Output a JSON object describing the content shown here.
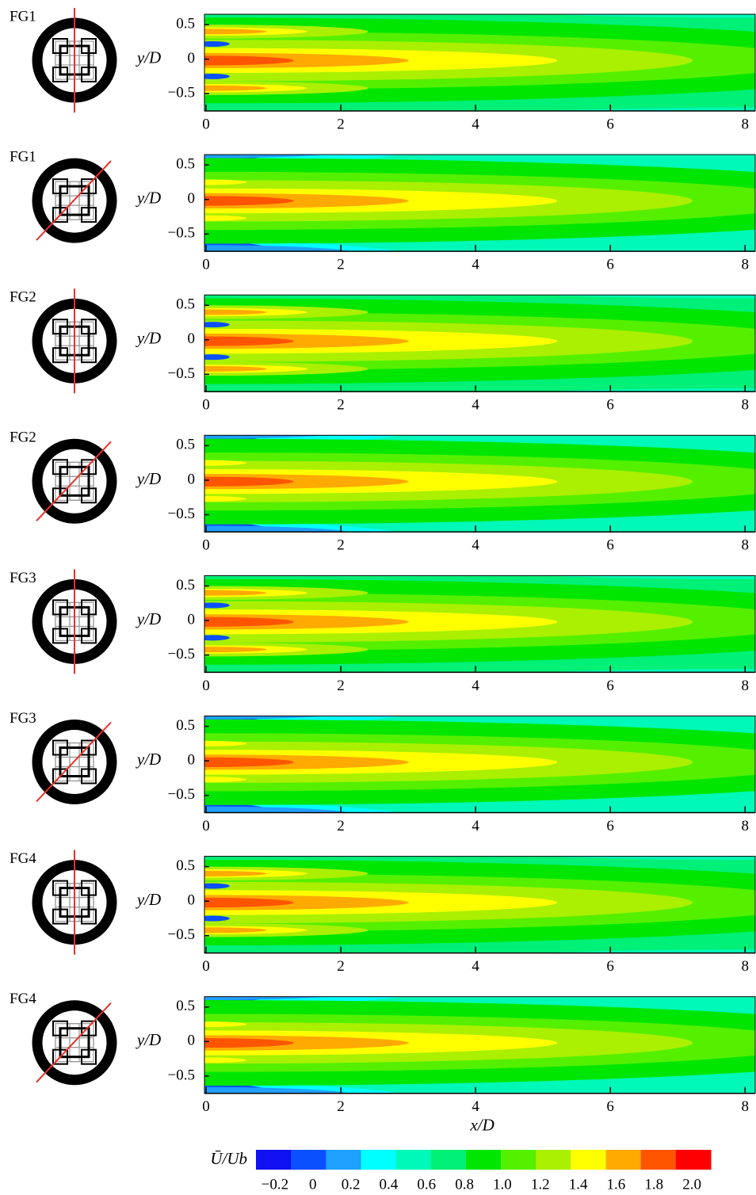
{
  "chart_data": [
    {
      "type": "contour",
      "label": "FG1",
      "ylabel": "y/D",
      "xlim": [
        0,
        8.15
      ],
      "ylim": [
        -0.75,
        0.65
      ],
      "xticks": [
        0,
        2,
        4,
        6,
        8
      ],
      "yticks": [
        {
          "value": 0.5,
          "label": "0.5"
        },
        0,
        {
          "value": -0.5,
          "label": "−0.5"
        }
      ]
    },
    {
      "type": "contour",
      "label": "FG1",
      "ylabel": "y/D",
      "xlim": [
        0,
        8.15
      ],
      "ylim": [
        -0.75,
        0.65
      ],
      "xticks": [
        0,
        2,
        4,
        6,
        8
      ],
      "yticks": [
        {
          "value": 0.5,
          "label": "0.5"
        },
        0,
        {
          "value": -0.5,
          "label": "−0.5"
        }
      ]
    },
    {
      "type": "contour",
      "label": "FG2",
      "ylabel": "y/D",
      "xlim": [
        0,
        8.15
      ],
      "ylim": [
        -0.75,
        0.65
      ],
      "xticks": [
        0,
        2,
        4,
        6,
        8
      ],
      "yticks": [
        {
          "value": 0.5,
          "label": "0.5"
        },
        0,
        {
          "value": -0.5,
          "label": "−0.5"
        }
      ]
    },
    {
      "type": "contour",
      "label": "FG2",
      "ylabel": "y/D",
      "xlim": [
        0,
        8.15
      ],
      "ylim": [
        -0.75,
        0.65
      ],
      "xticks": [
        0,
        2,
        4,
        6,
        8
      ],
      "yticks": [
        {
          "value": 0.5,
          "label": "0.5"
        },
        0,
        {
          "value": -0.5,
          "label": "−0.5"
        }
      ]
    },
    {
      "type": "contour",
      "label": "FG3",
      "ylabel": "y/D",
      "xlim": [
        0,
        8.15
      ],
      "ylim": [
        -0.75,
        0.65
      ],
      "xticks": [
        0,
        2,
        4,
        6,
        8
      ],
      "yticks": [
        {
          "value": 0.5,
          "label": "0.5"
        },
        0,
        {
          "value": -0.5,
          "label": "−0.5"
        }
      ]
    },
    {
      "type": "contour",
      "label": "FG3",
      "ylabel": "y/D",
      "xlim": [
        0,
        8.15
      ],
      "ylim": [
        -0.75,
        0.65
      ],
      "xticks": [
        0,
        2,
        4,
        6,
        8
      ],
      "yticks": [
        {
          "value": 0.5,
          "label": "0.5"
        },
        0,
        {
          "value": -0.5,
          "label": "−0.5"
        }
      ]
    },
    {
      "type": "contour",
      "label": "FG4",
      "ylabel": "y/D",
      "xlim": [
        0,
        8.15
      ],
      "ylim": [
        -0.75,
        0.65
      ],
      "xticks": [
        0,
        2,
        4,
        6,
        8
      ],
      "yticks": [
        {
          "value": 0.5,
          "label": "0.5"
        },
        0,
        {
          "value": -0.5,
          "label": "−0.5"
        }
      ]
    },
    {
      "type": "contour",
      "label": "FG4",
      "ylabel": "y/D",
      "xlabel": "x/D",
      "xlim": [
        0,
        8.15
      ],
      "ylim": [
        -0.75,
        0.65
      ],
      "xticks": [
        0,
        2,
        4,
        6,
        8
      ],
      "yticks": [
        {
          "value": 0.5,
          "label": "0.5"
        },
        0,
        {
          "value": -0.5,
          "label": "−0.5"
        }
      ]
    },
    {
      "type": "colorbar",
      "label": "Ū/Ub",
      "clim": [
        -0.3,
        2.1
      ],
      "ticks": [
        {
          "value": -0.2,
          "label": "−0.2"
        },
        0,
        0.2,
        0.4,
        0.6,
        0.8,
        {
          "value": 1.0,
          "label": "1.0"
        },
        1.2,
        1.4,
        1.6,
        1.8,
        {
          "value": 2.0,
          "label": "2.0"
        }
      ],
      "colors": [
        "#1010f0",
        "#0a50ff",
        "#1ea0ff",
        "#00ffff",
        "#00f8b8",
        "#00f078",
        "#00e600",
        "#55f000",
        "#aaf000",
        "#ffff00",
        "#ffaa00",
        "#ff5500",
        "#ff0000"
      ]
    }
  ]
}
